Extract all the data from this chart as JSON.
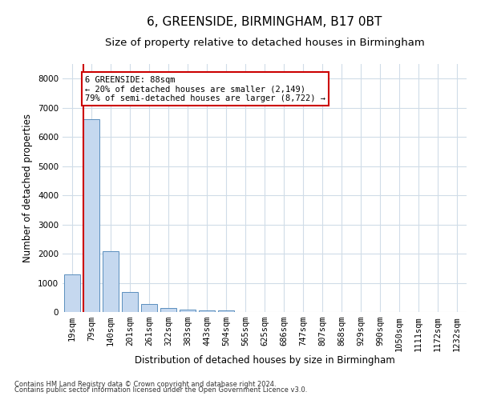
{
  "title": "6, GREENSIDE, BIRMINGHAM, B17 0BT",
  "subtitle": "Size of property relative to detached houses in Birmingham",
  "xlabel": "Distribution of detached houses by size in Birmingham",
  "ylabel": "Number of detached properties",
  "bar_labels": [
    "19sqm",
    "79sqm",
    "140sqm",
    "201sqm",
    "261sqm",
    "322sqm",
    "383sqm",
    "443sqm",
    "504sqm",
    "565sqm",
    "625sqm",
    "686sqm",
    "747sqm",
    "807sqm",
    "868sqm",
    "929sqm",
    "990sqm",
    "1050sqm",
    "1111sqm",
    "1172sqm",
    "1232sqm"
  ],
  "bar_values": [
    1300,
    6600,
    2080,
    690,
    280,
    140,
    90,
    55,
    55,
    0,
    0,
    0,
    0,
    0,
    0,
    0,
    0,
    0,
    0,
    0,
    0
  ],
  "bar_color": "#c5d8ef",
  "bar_edge_color": "#5a8fbe",
  "property_line_color": "#cc0000",
  "annotation_text": "6 GREENSIDE: 88sqm\n← 20% of detached houses are smaller (2,149)\n79% of semi-detached houses are larger (8,722) →",
  "annotation_box_color": "#ffffff",
  "annotation_box_edge": "#cc0000",
  "ylim": [
    0,
    8500
  ],
  "yticks": [
    0,
    1000,
    2000,
    3000,
    4000,
    5000,
    6000,
    7000,
    8000
  ],
  "footer1": "Contains HM Land Registry data © Crown copyright and database right 2024.",
  "footer2": "Contains public sector information licensed under the Open Government Licence v3.0.",
  "bg_color": "#ffffff",
  "grid_color": "#d0dce8",
  "title_fontsize": 11,
  "subtitle_fontsize": 9.5,
  "axis_label_fontsize": 8.5,
  "tick_fontsize": 7.5,
  "footer_fontsize": 6
}
